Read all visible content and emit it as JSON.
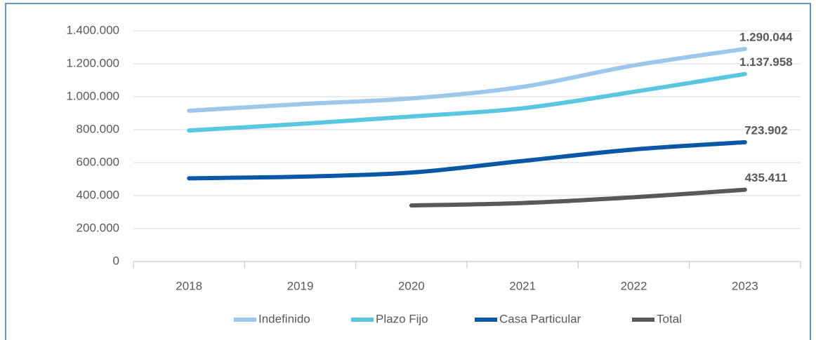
{
  "chart_data": {
    "type": "line",
    "categories": [
      "2018",
      "2019",
      "2020",
      "2021",
      "2022",
      "2023"
    ],
    "series": [
      {
        "name": "Indefinido",
        "color": "#9dc8ec",
        "values": [
          915000,
          955000,
          990000,
          1060000,
          1190000,
          1290044
        ],
        "value_labels": [
          null,
          null,
          null,
          null,
          null,
          "1.290.044"
        ]
      },
      {
        "name": "Plazo Fijo",
        "color": "#5bc6e0",
        "values": [
          795000,
          835000,
          880000,
          930000,
          1030000,
          1137958
        ],
        "value_labels": [
          null,
          null,
          null,
          null,
          null,
          "1.137.958"
        ]
      },
      {
        "name": "Casa Particular",
        "color": "#0a57a6",
        "values": [
          505000,
          515000,
          540000,
          610000,
          680000,
          723902
        ],
        "value_labels": [
          null,
          null,
          null,
          null,
          null,
          "723.902"
        ]
      },
      {
        "name": "Total",
        "color": "#595959",
        "values": [
          null,
          null,
          340000,
          355000,
          390000,
          435411
        ],
        "value_labels": [
          null,
          null,
          null,
          null,
          null,
          "435.411"
        ]
      }
    ],
    "ylim": [
      0,
      1400000
    ],
    "yticks": [
      0,
      {
        "value": 200000,
        "label": "200.000"
      },
      {
        "value": 400000,
        "label": "400.000"
      },
      {
        "value": 600000,
        "label": "600.000"
      },
      {
        "value": 800000,
        "label": "800.000"
      },
      {
        "value": 1000000,
        "label": "1.000.000"
      },
      {
        "value": 1200000,
        "label": "1.200.000"
      },
      {
        "value": 1400000,
        "label": "1.400.000"
      }
    ],
    "grid": true,
    "legend": "bottom"
  }
}
